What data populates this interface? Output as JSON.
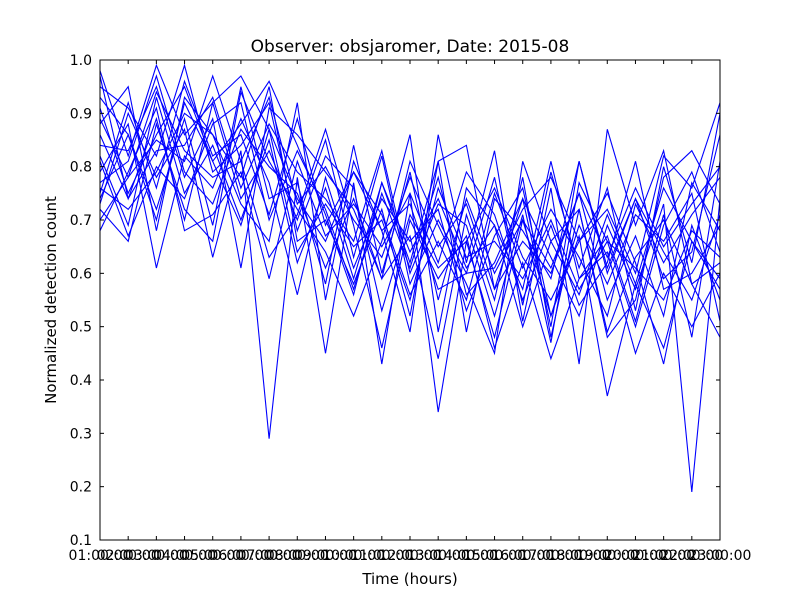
{
  "chart_data": {
    "type": "line",
    "title": "Observer: obsjaromer, Date: 2015-08",
    "xlabel": "Time (hours)",
    "ylabel": "Normalized detection count",
    "xlim": [
      1,
      23
    ],
    "ylim": [
      0.1,
      1.0
    ],
    "x_tick_values": [
      1,
      2,
      3,
      4,
      5,
      6,
      7,
      8,
      9,
      10,
      11,
      12,
      13,
      14,
      15,
      16,
      17,
      18,
      19,
      20,
      21,
      22,
      23
    ],
    "x_tick_labels": [
      "01:00:00",
      "02:00:00",
      "03:00:00",
      "04:00:00",
      "05:00:00",
      "06:00:00",
      "07:00:00",
      "08:00:00",
      "09:00:00",
      "10:00:00",
      "11:00:00",
      "12:00:00",
      "13:00:00",
      "14:00:00",
      "15:00:00",
      "16:00:00",
      "17:00:00",
      "18:00:00",
      "19:00:00",
      "20:00:00",
      "21:00:00",
      "22:00:00",
      "23:00:00"
    ],
    "y_ticks": [
      0.1,
      0.2,
      0.3,
      0.4,
      0.5,
      0.6,
      0.7,
      0.8,
      0.9,
      1.0
    ],
    "y_tick_labels": [
      "0.1",
      "0.2",
      "0.3",
      "0.4",
      "0.5",
      "0.6",
      "0.7",
      "0.8",
      "0.9",
      "1.0"
    ],
    "grid": false,
    "line_color": "#0000ff",
    "x": [
      1,
      2,
      3,
      4,
      5,
      6,
      7,
      8,
      9,
      10,
      11,
      12,
      13,
      14,
      15,
      16,
      17,
      18,
      19,
      20,
      21,
      22,
      23
    ],
    "series": [
      {
        "values": [
          0.98,
          0.82,
          0.99,
          0.86,
          0.92,
          0.97,
          0.87,
          0.74,
          0.66,
          0.79,
          0.68,
          0.73,
          0.57,
          0.6,
          0.61,
          0.72,
          0.78,
          0.66,
          0.72,
          0.6,
          0.82,
          0.76,
          0.92
        ]
      },
      {
        "values": [
          0.91,
          0.75,
          0.86,
          0.95,
          0.81,
          0.88,
          0.96,
          0.84,
          0.71,
          0.56,
          0.77,
          0.62,
          0.81,
          0.84,
          0.57,
          0.74,
          0.5,
          0.81,
          0.61,
          0.74,
          0.59,
          0.64,
          0.86
        ]
      },
      {
        "values": [
          0.76,
          0.72,
          0.79,
          0.9,
          0.86,
          0.73,
          0.66,
          0.92,
          0.55,
          0.81,
          0.68,
          0.49,
          0.86,
          0.62,
          0.83,
          0.51,
          0.76,
          0.43,
          0.87,
          0.69,
          0.83,
          0.58,
          0.62
        ]
      },
      {
        "values": [
          0.84,
          0.83,
          0.95,
          0.78,
          0.89,
          0.61,
          0.91,
          0.86,
          0.79,
          0.72,
          0.59,
          0.81,
          0.69,
          0.58,
          0.45,
          0.81,
          0.66,
          0.72,
          0.48,
          0.55,
          0.78,
          0.83,
          0.73
        ]
      },
      {
        "values": [
          0.72,
          0.66,
          0.88,
          0.72,
          0.66,
          0.94,
          0.81,
          0.72,
          0.64,
          0.52,
          0.66,
          0.86,
          0.49,
          0.76,
          0.69,
          0.57,
          0.81,
          0.59,
          0.67,
          0.51,
          0.71,
          0.48,
          0.81
        ]
      },
      {
        "values": [
          0.95,
          0.91,
          0.82,
          0.99,
          0.79,
          0.84,
          0.92,
          0.68,
          0.82,
          0.76,
          0.53,
          0.71,
          0.61,
          0.66,
          0.76,
          0.63,
          0.55,
          0.66,
          0.75,
          0.62,
          0.43,
          0.69,
          0.55
        ]
      },
      {
        "values": [
          0.79,
          0.88,
          0.61,
          0.82,
          0.76,
          0.89,
          0.77,
          0.56,
          0.78,
          0.61,
          0.74,
          0.66,
          0.72,
          0.53,
          0.67,
          0.76,
          0.52,
          0.69,
          0.58,
          0.71,
          0.66,
          0.75,
          0.51
        ]
      },
      {
        "values": [
          0.68,
          0.79,
          0.91,
          0.68,
          0.71,
          0.79,
          0.59,
          0.81,
          0.67,
          0.73,
          0.65,
          0.75,
          0.62,
          0.79,
          0.71,
          0.55,
          0.69,
          0.54,
          0.62,
          0.81,
          0.57,
          0.6,
          0.69
        ]
      },
      {
        "values": [
          0.86,
          0.74,
          0.83,
          0.84,
          0.93,
          0.76,
          0.88,
          0.79,
          0.74,
          0.66,
          0.83,
          0.6,
          0.73,
          0.69,
          0.52,
          0.71,
          0.47,
          0.77,
          0.66,
          0.5,
          0.69,
          0.79,
          0.64
        ]
      },
      {
        "values": [
          0.75,
          0.92,
          0.76,
          0.96,
          0.82,
          0.86,
          0.71,
          0.89,
          0.69,
          0.79,
          0.71,
          0.56,
          0.66,
          0.55,
          0.75,
          0.61,
          0.72,
          0.63,
          0.52,
          0.73,
          0.62,
          0.71,
          0.78
        ]
      },
      {
        "values": [
          0.82,
          0.69,
          0.93,
          0.75,
          0.84,
          0.7,
          0.85,
          0.62,
          0.76,
          0.59,
          0.77,
          0.64,
          0.74,
          0.61,
          0.69,
          0.5,
          0.66,
          0.56,
          0.71,
          0.58,
          0.76,
          0.66,
          0.59
        ]
      },
      {
        "values": [
          0.93,
          0.86,
          0.72,
          0.89,
          0.69,
          0.95,
          0.74,
          0.77,
          0.58,
          0.84,
          0.6,
          0.79,
          0.55,
          0.74,
          0.6,
          0.7,
          0.61,
          0.75,
          0.55,
          0.67,
          0.52,
          0.77,
          0.68
        ]
      },
      {
        "values": [
          0.7,
          0.78,
          0.85,
          0.81,
          0.97,
          0.81,
          0.63,
          0.71,
          0.87,
          0.69,
          0.46,
          0.7,
          0.59,
          0.67,
          0.46,
          0.62,
          0.44,
          0.59,
          0.64,
          0.45,
          0.6,
          0.5,
          0.6
        ]
      },
      {
        "values": [
          0.88,
          0.95,
          0.68,
          0.93,
          0.86,
          0.78,
          0.95,
          0.66,
          0.7,
          0.58,
          0.72,
          0.52,
          0.81,
          0.49,
          0.74,
          0.68,
          0.59,
          0.81,
          0.6,
          0.74,
          0.64,
          0.55,
          0.71
        ]
      },
      {
        "values": [
          0.77,
          0.81,
          0.97,
          0.79,
          0.73,
          0.87,
          0.8,
          0.75,
          0.61,
          0.74,
          0.59,
          0.67,
          0.44,
          0.71,
          0.55,
          0.78,
          0.48,
          0.72,
          0.49,
          0.63,
          0.7,
          0.58,
          0.48
        ]
      },
      {
        "values": [
          0.97,
          0.74,
          0.89,
          0.7,
          0.92,
          0.74,
          0.83,
          0.7,
          0.85,
          0.63,
          0.82,
          0.58,
          0.7,
          0.6,
          0.78,
          0.54,
          0.79,
          0.61,
          0.76,
          0.53,
          0.8,
          0.62,
          0.9
        ]
      },
      {
        "values": [
          0.73,
          0.9,
          0.78,
          0.87,
          0.63,
          0.83,
          0.29,
          0.78,
          0.45,
          0.77,
          0.43,
          0.75,
          0.34,
          0.66,
          0.48,
          0.7,
          0.52,
          0.67,
          0.37,
          0.58,
          0.46,
          0.66,
          0.57
        ]
      },
      {
        "values": [
          0.81,
          0.67,
          0.8,
          0.74,
          0.88,
          0.92,
          0.7,
          0.83,
          0.72,
          0.57,
          0.75,
          0.61,
          0.78,
          0.56,
          0.62,
          0.74,
          0.63,
          0.52,
          0.69,
          0.57,
          0.73,
          0.19,
          0.74
        ]
      },
      {
        "values": [
          0.89,
          0.78,
          0.94,
          0.83,
          0.78,
          0.81,
          0.93,
          0.73,
          0.8,
          0.7,
          0.63,
          0.78,
          0.65,
          0.73,
          0.57,
          0.66,
          0.6,
          0.75,
          0.63,
          0.76,
          0.65,
          0.73,
          0.8
        ]
      },
      {
        "values": [
          0.74,
          0.86,
          0.7,
          0.92,
          0.81,
          0.69,
          0.87,
          0.64,
          0.73,
          0.65,
          0.7,
          0.55,
          0.76,
          0.63,
          0.66,
          0.59,
          0.7,
          0.57,
          0.66,
          0.61,
          0.55,
          0.68,
          0.63
        ]
      }
    ]
  }
}
